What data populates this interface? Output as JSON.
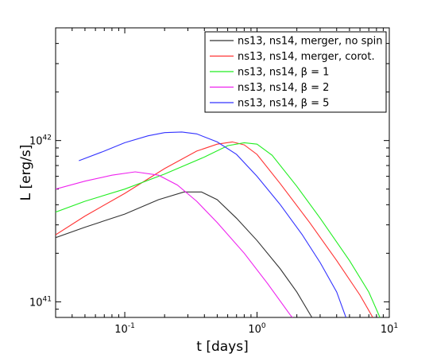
{
  "chart_data": {
    "type": "line",
    "title": "",
    "xlabel": "t [days]",
    "ylabel": "L [erg/s]",
    "xscale": "log",
    "yscale": "log",
    "xlim": [
      0.03,
      10
    ],
    "ylim": [
      8e+40,
      5e+42
    ],
    "xticks": [
      {
        "base": "10",
        "exp": "-1",
        "value": 0.1
      },
      {
        "base": "10",
        "exp": "0",
        "value": 1
      },
      {
        "base": "10",
        "exp": "1",
        "value": 10
      }
    ],
    "yticks": [
      {
        "base": "10",
        "exp": "41",
        "value": 1e+41
      },
      {
        "base": "10",
        "exp": "42",
        "value": 1e+42
      }
    ],
    "grid": false,
    "legend_position": "top-right",
    "series": [
      {
        "name": "ns13, ns14, merger, no spin",
        "color": "#333333",
        "points": [
          [
            0.03,
            2.5e+41
          ],
          [
            0.05,
            2.9e+41
          ],
          [
            0.1,
            3.5e+41
          ],
          [
            0.18,
            4.3e+41
          ],
          [
            0.28,
            4.8e+41
          ],
          [
            0.38,
            4.8e+41
          ],
          [
            0.5,
            4.3e+41
          ],
          [
            0.7,
            3.3e+41
          ],
          [
            1.0,
            2.4e+41
          ],
          [
            1.5,
            1.6e+41
          ],
          [
            2.0,
            1.15e+41
          ],
          [
            2.6,
            8e+40
          ]
        ]
      },
      {
        "name": "ns13, ns14, merger, corot.",
        "color": "#ff3333",
        "points": [
          [
            0.03,
            2.6e+41
          ],
          [
            0.05,
            3.4e+41
          ],
          [
            0.1,
            4.7e+41
          ],
          [
            0.2,
            6.7e+41
          ],
          [
            0.35,
            8.6e+41
          ],
          [
            0.5,
            9.5e+41
          ],
          [
            0.65,
            9.8e+41
          ],
          [
            0.8,
            9.4e+41
          ],
          [
            1.0,
            8.2e+41
          ],
          [
            1.5,
            5.4e+41
          ],
          [
            2.5,
            3.1e+41
          ],
          [
            4.0,
            1.8e+41
          ],
          [
            6.0,
            1.1e+41
          ],
          [
            7.5,
            8e+40
          ]
        ]
      },
      {
        "name": "ns13, ns14, β = 1",
        "color": "#22ee22",
        "points": [
          [
            0.03,
            3.6e+41
          ],
          [
            0.05,
            4.2e+41
          ],
          [
            0.1,
            5e+41
          ],
          [
            0.2,
            6.2e+41
          ],
          [
            0.4,
            7.9e+41
          ],
          [
            0.6,
            9.3e+41
          ],
          [
            0.8,
            9.7e+41
          ],
          [
            1.0,
            9.5e+41
          ],
          [
            1.3,
            8.1e+41
          ],
          [
            2.0,
            5.2e+41
          ],
          [
            3.0,
            3.3e+41
          ],
          [
            5.0,
            1.8e+41
          ],
          [
            7.0,
            1.15e+41
          ],
          [
            8.5,
            8e+40
          ]
        ]
      },
      {
        "name": "ns13, ns14, β = 2",
        "color": "#ee22ee",
        "points": [
          [
            0.03,
            5e+41
          ],
          [
            0.05,
            5.6e+41
          ],
          [
            0.08,
            6.1e+41
          ],
          [
            0.12,
            6.4e+41
          ],
          [
            0.18,
            6.1e+41
          ],
          [
            0.25,
            5.3e+41
          ],
          [
            0.35,
            4.2e+41
          ],
          [
            0.5,
            3.1e+41
          ],
          [
            0.8,
            2e+41
          ],
          [
            1.2,
            1.3e+41
          ],
          [
            1.8,
            8.2e+40
          ],
          [
            1.85,
            8e+40
          ]
        ]
      },
      {
        "name": "ns13, ns14, β = 5",
        "color": "#3333ff",
        "points": [
          [
            0.045,
            7.5e+41
          ],
          [
            0.07,
            8.6e+41
          ],
          [
            0.1,
            9.7e+41
          ],
          [
            0.15,
            1.07e+42
          ],
          [
            0.2,
            1.12e+42
          ],
          [
            0.27,
            1.13e+42
          ],
          [
            0.35,
            1.1e+42
          ],
          [
            0.5,
            9.8e+41
          ],
          [
            0.7,
            8.2e+41
          ],
          [
            1.0,
            6e+41
          ],
          [
            1.5,
            4e+41
          ],
          [
            2.2,
            2.6e+41
          ],
          [
            3.0,
            1.75e+41
          ],
          [
            4.0,
            1.15e+41
          ],
          [
            4.7,
            8e+40
          ]
        ]
      }
    ]
  }
}
